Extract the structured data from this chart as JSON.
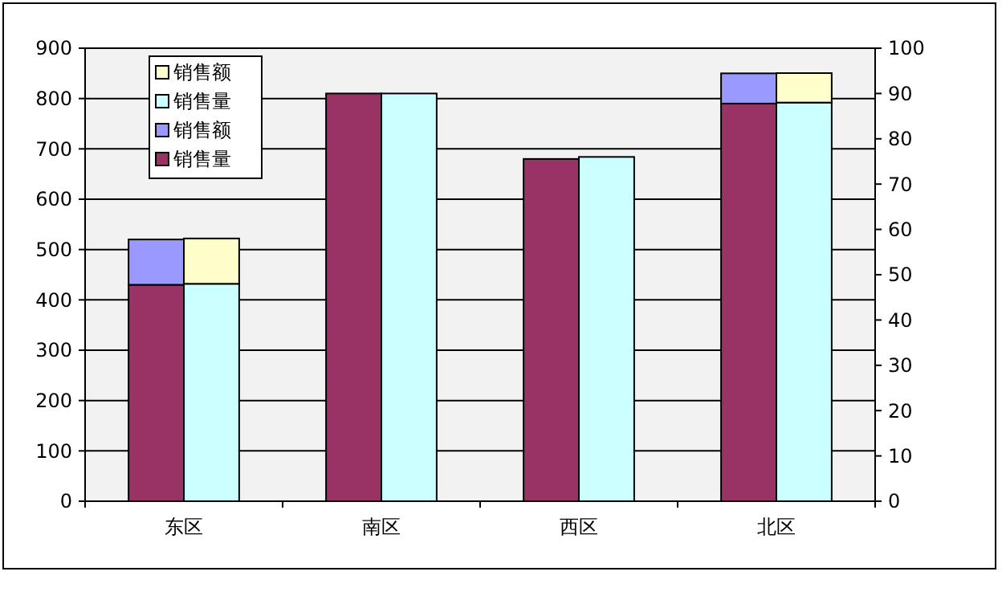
{
  "chart_data": {
    "type": "bar",
    "stacked": true,
    "categories": [
      "东区",
      "南区",
      "西区",
      "北区"
    ],
    "series": [
      {
        "name": "销售量",
        "color": "#993366",
        "values": [
          430,
          810,
          680,
          790
        ]
      },
      {
        "name": "销售额",
        "color": "#9999ff",
        "values": [
          90,
          0,
          0,
          60
        ]
      },
      {
        "name": "销售量",
        "color": "#ccffff",
        "axis": "y2",
        "values": [
          48,
          90,
          76,
          88
        ]
      },
      {
        "name": "销售额",
        "color": "#ffffcc",
        "axis": "y2",
        "values": [
          10,
          0,
          0,
          6.5
        ]
      }
    ],
    "ylim": [
      0,
      900
    ],
    "yticks": [
      0,
      100,
      200,
      300,
      400,
      500,
      600,
      700,
      800,
      900
    ],
    "y2lim": [
      0,
      100
    ],
    "y2ticks": [
      0,
      10,
      20,
      30,
      40,
      50,
      60,
      70,
      80,
      90,
      100
    ],
    "grid": "y",
    "legend": "top left"
  }
}
